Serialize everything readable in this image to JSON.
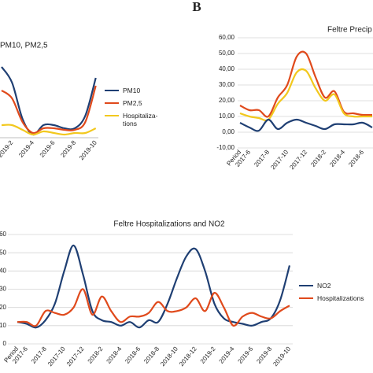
{
  "panel_label": "B",
  "chart_data": [
    {
      "type": "line",
      "title": "PM10, PM2,5",
      "categories": [
        null,
        "2019-2",
        null,
        "2019-4",
        null,
        "2019-6",
        null,
        "2019-8",
        null,
        "2019-10"
      ],
      "ylim": [
        0,
        50
      ],
      "series": [
        {
          "name": "PM10",
          "color": "#1f3f73",
          "values": [
            45,
            35,
            12,
            2,
            8,
            8,
            6,
            6,
            14,
            38
          ]
        },
        {
          "name": "PM2,5",
          "color": "#e04a1c",
          "values": [
            30,
            25,
            10,
            3,
            6,
            6,
            5,
            5,
            10,
            33
          ]
        },
        {
          "name": "Hospitaliza-tions",
          "color": "#f2c81e",
          "values": [
            8,
            8,
            5,
            2,
            4,
            3,
            2,
            3,
            3,
            6
          ]
        }
      ]
    },
    {
      "type": "line",
      "title": "Feltre Precip",
      "categories": [
        "Period",
        "2017-6",
        null,
        "2017-8",
        null,
        "2017-10",
        null,
        "2017-12",
        null,
        "2018-2",
        null,
        "2018-4",
        null,
        "2018-6",
        null
      ],
      "ylim": [
        -10,
        60
      ],
      "yticks": [
        {
          "value": -10,
          "label": "-10,00"
        },
        {
          "value": 0,
          "label": "0,00"
        },
        {
          "value": 10,
          "label": "10,00"
        },
        {
          "value": 20,
          "label": "20,00"
        },
        {
          "value": 30,
          "label": "30,00"
        },
        {
          "value": 40,
          "label": "40,00"
        },
        {
          "value": 50,
          "label": "50,00"
        },
        {
          "value": 60,
          "label": "60,00"
        }
      ],
      "grid": true,
      "series": [
        {
          "color": "#e04a1c",
          "values": [
            17,
            14,
            14,
            10,
            22,
            30,
            48,
            50,
            35,
            22,
            26,
            13,
            12,
            11,
            11
          ]
        },
        {
          "color": "#f2c81e",
          "values": [
            12,
            10,
            9,
            8,
            18,
            25,
            38,
            39,
            28,
            20,
            24,
            12,
            10,
            10,
            10
          ]
        },
        {
          "color": "#1f3f73",
          "values": [
            6,
            3,
            1,
            8,
            2,
            6,
            8,
            6,
            4,
            2,
            5,
            5,
            5,
            6,
            3
          ]
        }
      ]
    },
    {
      "type": "line",
      "title": "Feltre Hospitalizations and NO2",
      "categories": [
        "Period",
        "2017-6",
        null,
        "2017-8",
        null,
        "2017-10",
        null,
        "2017-12",
        null,
        "2018-2",
        null,
        "2018-4",
        null,
        "2018-6",
        null,
        "2018-8",
        null,
        "2018-10",
        null,
        "2018-12",
        null,
        "2019-2",
        null,
        "2019-4",
        null,
        "2019-6",
        null,
        "2019-8",
        null,
        "2019-10"
      ],
      "ylim": [
        0,
        60
      ],
      "yticks": [
        0,
        10,
        20,
        30,
        40,
        50,
        60
      ],
      "grid": true,
      "series": [
        {
          "name": "NO2",
          "color": "#1f3f73",
          "values": [
            12,
            11,
            9,
            13,
            22,
            40,
            54,
            38,
            18,
            13,
            12,
            10,
            12,
            9,
            13,
            12,
            22,
            36,
            48,
            52,
            40,
            22,
            14,
            12,
            11,
            10,
            12,
            14,
            24,
            43
          ]
        },
        {
          "name": "Hospitalizations",
          "color": "#e04a1c",
          "values": [
            12,
            12,
            10,
            18,
            17,
            16,
            20,
            30,
            16,
            26,
            18,
            12,
            15,
            15,
            17,
            23,
            18,
            18,
            20,
            25,
            18,
            28,
            20,
            10,
            15,
            17,
            15,
            14,
            18,
            21
          ]
        }
      ]
    }
  ]
}
